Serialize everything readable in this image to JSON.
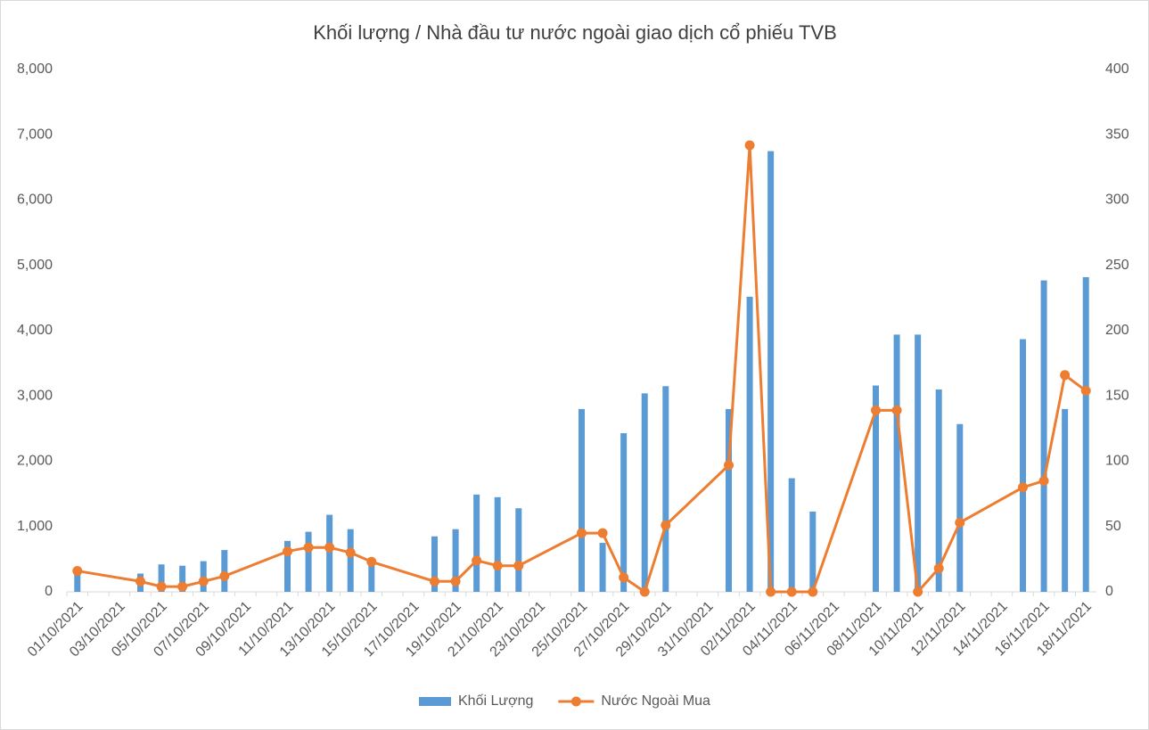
{
  "chart_data": {
    "type": "bar_line",
    "title": "Khối lượng / Nhà đầu tư nước ngoài giao dịch cổ phiếu TVB",
    "categories": [
      "01/10/2021",
      null,
      "03/10/2021",
      null,
      "05/10/2021",
      null,
      "07/10/2021",
      null,
      "09/10/2021",
      null,
      "11/10/2021",
      null,
      "13/10/2021",
      null,
      "15/10/2021",
      null,
      "17/10/2021",
      null,
      "19/10/2021",
      null,
      "21/10/2021",
      null,
      "23/10/2021",
      null,
      "25/10/2021",
      null,
      "27/10/2021",
      null,
      "29/10/2021",
      null,
      "31/10/2021",
      null,
      "02/11/2021",
      null,
      "04/11/2021",
      null,
      "06/11/2021",
      null,
      "08/11/2021",
      null,
      "10/11/2021",
      null,
      "12/11/2021",
      null,
      "14/11/2021",
      null,
      "16/11/2021",
      null,
      "18/11/2021"
    ],
    "series": [
      {
        "name": "Khối Lượng",
        "type": "bar",
        "color": "#5b9bd5",
        "values": [
          330,
          null,
          null,
          280,
          420,
          400,
          470,
          640,
          null,
          null,
          780,
          920,
          1180,
          960,
          500,
          null,
          null,
          850,
          960,
          1490,
          1450,
          1280,
          null,
          null,
          2800,
          750,
          2430,
          3040,
          3150,
          null,
          null,
          2800,
          4520,
          6750,
          1740,
          1230,
          null,
          null,
          3160,
          3940,
          3940,
          3100,
          2570,
          null,
          null,
          3870,
          4770,
          2800,
          4820
        ]
      },
      {
        "name": "Nước Ngoài Mua",
        "type": "line",
        "axis": "y2",
        "color": "#ed7d31",
        "values": [
          16,
          null,
          null,
          8,
          4,
          4,
          8,
          12,
          null,
          null,
          31,
          34,
          34,
          30,
          23,
          null,
          null,
          8,
          8,
          24,
          20,
          20,
          null,
          null,
          45,
          45,
          11,
          0,
          51,
          null,
          null,
          97,
          342,
          0,
          0,
          0,
          null,
          null,
          139,
          139,
          0,
          18,
          53,
          null,
          null,
          80,
          85,
          166,
          154
        ]
      }
    ],
    "span_gaps": true,
    "ylim": [
      0,
      8000
    ],
    "yticks": [
      0,
      {
        "value": 1000,
        "label": "1,000"
      },
      {
        "value": 2000,
        "label": "2,000"
      },
      {
        "value": 3000,
        "label": "3,000"
      },
      {
        "value": 4000,
        "label": "4,000"
      },
      {
        "value": 5000,
        "label": "5,000"
      },
      {
        "value": 6000,
        "label": "6,000"
      },
      {
        "value": 7000,
        "label": "7,000"
      },
      {
        "value": 8000,
        "label": "8,000"
      }
    ],
    "y2lim": [
      0,
      400
    ],
    "y2ticks": [
      0,
      50,
      100,
      150,
      200,
      250,
      300,
      350,
      400
    ],
    "grid": false,
    "legend": "bottom"
  }
}
